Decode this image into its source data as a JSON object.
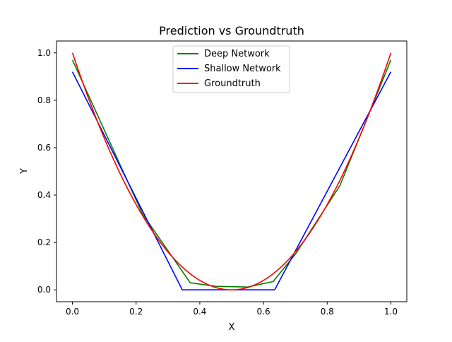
{
  "chart_data": {
    "type": "line",
    "title": "Prediction vs Groundtruth",
    "xlabel": "X",
    "ylabel": "Y",
    "xlim": [
      -0.05,
      1.05
    ],
    "ylim": [
      -0.05,
      1.05
    ],
    "xticks": [
      0.0,
      0.2,
      0.4,
      0.6,
      0.8,
      1.0
    ],
    "xtick_labels": [
      "0.0",
      "0.2",
      "0.4",
      "0.6",
      "0.8",
      "1.0"
    ],
    "yticks": [
      0.0,
      0.2,
      0.4,
      0.6,
      0.8,
      1.0
    ],
    "ytick_labels": [
      "0.0",
      "0.2",
      "0.4",
      "0.6",
      "0.8",
      "1.0"
    ],
    "grid": false,
    "legend_position": "upper center",
    "series": [
      {
        "name": "Deep Network",
        "color": "#008000",
        "x": [
          0.0,
          0.22,
          0.37,
          0.45,
          0.55,
          0.63,
          0.7,
          0.84,
          1.0
        ],
        "y": [
          0.97,
          0.32,
          0.03,
          0.015,
          0.012,
          0.035,
          0.15,
          0.44,
          0.97
        ]
      },
      {
        "name": "Shallow Network",
        "color": "#0000ff",
        "x": [
          0.0,
          0.345,
          0.635,
          1.0
        ],
        "y": [
          0.92,
          0.0,
          0.0,
          0.92
        ]
      },
      {
        "name": "Groundtruth",
        "color": "#ff0000",
        "function": "4*(x-0.5)^2",
        "x_range": [
          0.0,
          1.0
        ]
      }
    ]
  }
}
